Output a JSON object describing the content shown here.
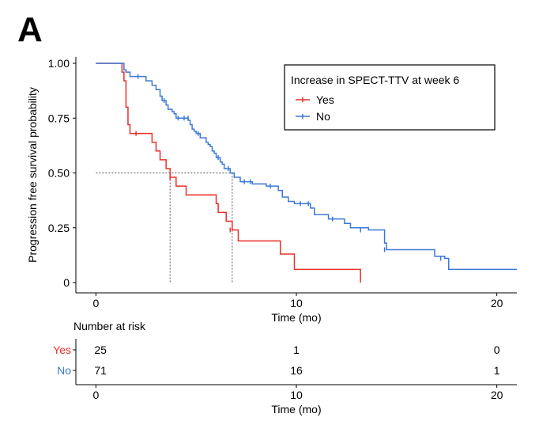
{
  "panel_label": "A",
  "chart_data": {
    "type": "line",
    "subtype": "kaplan-meier",
    "ylabel": "Progression free survival probability",
    "xlabel": "Time (mo)",
    "xlim": [
      -1,
      21
    ],
    "ylim": [
      0,
      1
    ],
    "x_ticks": [
      0,
      10,
      20
    ],
    "x_tick_labels": [
      "0",
      "10",
      "20"
    ],
    "y_ticks": [
      0,
      0.25,
      0.5,
      0.75,
      1.0
    ],
    "y_tick_labels": [
      "0",
      "0.25",
      "0.50",
      "0.75",
      "1.00"
    ],
    "grid": false,
    "legend": {
      "title": "Increase in SPECT-TTV at week 6",
      "placement": "top-right",
      "entries": [
        "Yes",
        "No"
      ]
    },
    "series": [
      {
        "name": "Yes",
        "color": "#e8302a",
        "steps": [
          [
            0,
            1.0
          ],
          [
            1.3,
            0.96
          ],
          [
            1.4,
            0.92
          ],
          [
            1.5,
            0.8
          ],
          [
            1.6,
            0.72
          ],
          [
            1.7,
            0.68
          ],
          [
            2.8,
            0.64
          ],
          [
            3.0,
            0.6
          ],
          [
            3.2,
            0.56
          ],
          [
            3.5,
            0.52
          ],
          [
            3.7,
            0.48
          ],
          [
            4.0,
            0.44
          ],
          [
            4.5,
            0.4
          ],
          [
            6.0,
            0.36
          ],
          [
            6.1,
            0.32
          ],
          [
            6.5,
            0.28
          ],
          [
            6.8,
            0.24
          ],
          [
            7.1,
            0.19
          ],
          [
            9.2,
            0.13
          ],
          [
            9.9,
            0.06
          ],
          [
            13.2,
            0.0
          ]
        ],
        "end_x": 13.2,
        "censor": [
          [
            2.0,
            0.68
          ],
          [
            3.7,
            0.48
          ],
          [
            6.7,
            0.24
          ]
        ]
      },
      {
        "name": "No",
        "color": "#3a78d8",
        "steps": [
          [
            0,
            1.0
          ],
          [
            1.4,
            0.97
          ],
          [
            1.5,
            0.96
          ],
          [
            1.7,
            0.94
          ],
          [
            2.5,
            0.92
          ],
          [
            2.8,
            0.9
          ],
          [
            3.0,
            0.88
          ],
          [
            3.2,
            0.85
          ],
          [
            3.3,
            0.83
          ],
          [
            3.5,
            0.81
          ],
          [
            3.6,
            0.79
          ],
          [
            3.8,
            0.78
          ],
          [
            3.9,
            0.77
          ],
          [
            4.0,
            0.75
          ],
          [
            4.6,
            0.74
          ],
          [
            4.7,
            0.72
          ],
          [
            4.8,
            0.7
          ],
          [
            4.9,
            0.69
          ],
          [
            5.0,
            0.68
          ],
          [
            5.2,
            0.66
          ],
          [
            5.5,
            0.64
          ],
          [
            5.6,
            0.63
          ],
          [
            5.7,
            0.62
          ],
          [
            5.8,
            0.6
          ],
          [
            5.9,
            0.59
          ],
          [
            6.0,
            0.57
          ],
          [
            6.2,
            0.55
          ],
          [
            6.3,
            0.54
          ],
          [
            6.4,
            0.52
          ],
          [
            6.7,
            0.5
          ],
          [
            6.9,
            0.48
          ],
          [
            7.2,
            0.46
          ],
          [
            7.8,
            0.45
          ],
          [
            8.5,
            0.44
          ],
          [
            9.1,
            0.42
          ],
          [
            9.3,
            0.39
          ],
          [
            9.6,
            0.37
          ],
          [
            9.9,
            0.36
          ],
          [
            10.7,
            0.34
          ],
          [
            10.9,
            0.31
          ],
          [
            11.6,
            0.29
          ],
          [
            12.4,
            0.27
          ],
          [
            12.7,
            0.25
          ],
          [
            13.6,
            0.24
          ],
          [
            14.4,
            0.18
          ],
          [
            14.5,
            0.15
          ],
          [
            16.9,
            0.12
          ],
          [
            17.4,
            0.11
          ],
          [
            17.6,
            0.06
          ],
          [
            21.0,
            0.06
          ]
        ],
        "end_x": 21.0,
        "censor": [
          [
            2.1,
            0.94
          ],
          [
            3.4,
            0.83
          ],
          [
            4.1,
            0.75
          ],
          [
            4.4,
            0.75
          ],
          [
            4.6,
            0.75
          ],
          [
            5.1,
            0.68
          ],
          [
            6.1,
            0.57
          ],
          [
            6.6,
            0.52
          ],
          [
            7.4,
            0.46
          ],
          [
            7.7,
            0.46
          ],
          [
            8.7,
            0.44
          ],
          [
            10.2,
            0.36
          ],
          [
            10.6,
            0.36
          ],
          [
            11.8,
            0.29
          ],
          [
            13.2,
            0.24
          ],
          [
            14.4,
            0.15
          ],
          [
            17.2,
            0.11
          ]
        ]
      }
    ],
    "median_lines": [
      {
        "x": 3.7,
        "y": 0.5
      },
      {
        "x": 6.8,
        "y": 0.5
      }
    ],
    "risk_table": {
      "title": "Number at risk",
      "xlabel": "Time (mo)",
      "x_ticks": [
        0,
        10,
        20
      ],
      "x_tick_labels": [
        "0",
        "10",
        "20"
      ],
      "rows": [
        {
          "label": "Yes",
          "color": "#e8302a",
          "counts": [
            "25",
            "1",
            "0"
          ]
        },
        {
          "label": "No",
          "color": "#3a78d8",
          "counts": [
            "71",
            "16",
            "1"
          ]
        }
      ]
    }
  }
}
